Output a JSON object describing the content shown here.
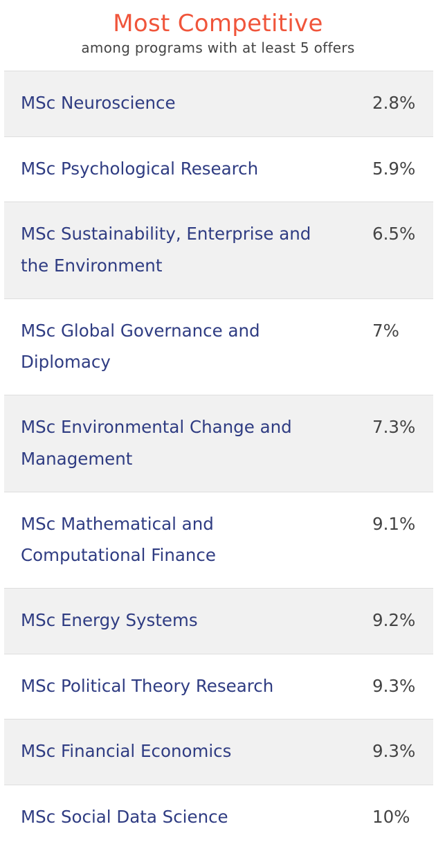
{
  "header": {
    "title": "Most Competitive",
    "subtitle": "among programs with at least 5 offers"
  },
  "rows": [
    {
      "program": "MSc Neuroscience",
      "rate": "2.8%"
    },
    {
      "program": "MSc Psychological Research",
      "rate": "5.9%"
    },
    {
      "program": "MSc Sustainability, Enterprise and the Environment",
      "rate": "6.5%"
    },
    {
      "program": "MSc Global Governance and Diplomacy",
      "rate": "7%"
    },
    {
      "program": "MSc Environmental Change and Management",
      "rate": "7.3%"
    },
    {
      "program": "MSc Mathematical and Computational Finance",
      "rate": "9.1%"
    },
    {
      "program": "MSc Energy Systems",
      "rate": "9.2%"
    },
    {
      "program": "MSc Political Theory Research",
      "rate": "9.3%"
    },
    {
      "program": "MSc Financial Economics",
      "rate": "9.3%"
    },
    {
      "program": "MSc Social Data Science",
      "rate": "10%"
    }
  ],
  "colors": {
    "title": "#f0553b",
    "program_text": "#2f3c82",
    "rate_text": "#444444",
    "shaded_row": "#f1f1f1",
    "divider": "#dedede"
  }
}
